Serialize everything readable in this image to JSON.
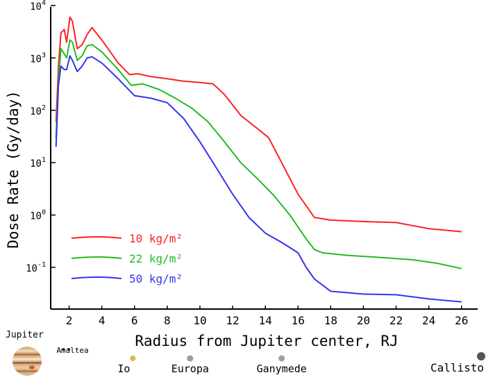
{
  "chart_data": {
    "type": "line",
    "ylabel": "Dose Rate (Gy/day)",
    "xlabel": "Radius from Jupiter center, RJ",
    "xlim": [
      1,
      26.3
    ],
    "ylim": [
      0.01,
      10000
    ],
    "yscale": "log",
    "grid": false,
    "legend_position": "lower-left",
    "x_ticks": [
      2,
      4,
      6,
      8,
      10,
      12,
      14,
      16,
      18,
      20,
      22,
      24,
      26
    ],
    "y_ticks": [
      {
        "value": 10000,
        "label": "10^4"
      },
      {
        "value": 1000,
        "label": "10^3"
      },
      {
        "value": 100,
        "label": "10^2"
      },
      {
        "value": 10,
        "label": "10^1"
      },
      {
        "value": 1,
        "label": "10^0"
      },
      {
        "value": 0.1,
        "label": "10^-1"
      }
    ],
    "series": [
      {
        "name": "10 kg/m²",
        "color": "#ff2020",
        "points": [
          [
            1.2,
            60
          ],
          [
            1.35,
            700
          ],
          [
            1.5,
            3000
          ],
          [
            1.7,
            3500
          ],
          [
            1.85,
            2000
          ],
          [
            2.05,
            6000
          ],
          [
            2.2,
            5000
          ],
          [
            2.5,
            1500
          ],
          [
            2.8,
            1800
          ],
          [
            3.1,
            2800
          ],
          [
            3.4,
            3800
          ],
          [
            4.0,
            2200
          ],
          [
            5.0,
            800
          ],
          [
            5.7,
            480
          ],
          [
            6.2,
            500
          ],
          [
            7.0,
            440
          ],
          [
            8.0,
            400
          ],
          [
            9.0,
            360
          ],
          [
            10.0,
            340
          ],
          [
            10.8,
            320
          ],
          [
            11.5,
            200
          ],
          [
            12.5,
            80
          ],
          [
            13.5,
            45
          ],
          [
            14.2,
            30
          ],
          [
            15.0,
            10
          ],
          [
            16.0,
            2.5
          ],
          [
            17.0,
            0.9
          ],
          [
            18.0,
            0.8
          ],
          [
            20.0,
            0.75
          ],
          [
            22.0,
            0.72
          ],
          [
            24.0,
            0.55
          ],
          [
            26.0,
            0.48
          ]
        ]
      },
      {
        "name": "22 kg/m²",
        "color": "#22bb22",
        "points": [
          [
            1.2,
            30
          ],
          [
            1.35,
            400
          ],
          [
            1.5,
            1500
          ],
          [
            1.7,
            1200
          ],
          [
            1.85,
            1000
          ],
          [
            2.05,
            2200
          ],
          [
            2.2,
            2000
          ],
          [
            2.5,
            900
          ],
          [
            2.8,
            1100
          ],
          [
            3.1,
            1700
          ],
          [
            3.4,
            1800
          ],
          [
            4.0,
            1300
          ],
          [
            5.0,
            600
          ],
          [
            5.8,
            300
          ],
          [
            6.5,
            320
          ],
          [
            7.5,
            250
          ],
          [
            8.5,
            170
          ],
          [
            9.5,
            110
          ],
          [
            10.5,
            60
          ],
          [
            11.5,
            25
          ],
          [
            12.5,
            10
          ],
          [
            13.5,
            5
          ],
          [
            14.5,
            2.4
          ],
          [
            15.5,
            1.0
          ],
          [
            16.5,
            0.35
          ],
          [
            17.0,
            0.22
          ],
          [
            17.5,
            0.19
          ],
          [
            19.0,
            0.17
          ],
          [
            21.0,
            0.155
          ],
          [
            23.0,
            0.14
          ],
          [
            24.5,
            0.12
          ],
          [
            26.0,
            0.095
          ]
        ]
      },
      {
        "name": "50 kg/m²",
        "color": "#3333ee",
        "points": [
          [
            1.2,
            20
          ],
          [
            1.35,
            300
          ],
          [
            1.5,
            700
          ],
          [
            1.7,
            600
          ],
          [
            1.85,
            600
          ],
          [
            2.05,
            1100
          ],
          [
            2.2,
            900
          ],
          [
            2.5,
            550
          ],
          [
            2.8,
            700
          ],
          [
            3.1,
            1000
          ],
          [
            3.4,
            1050
          ],
          [
            4.0,
            800
          ],
          [
            5.0,
            400
          ],
          [
            6.0,
            190
          ],
          [
            7.0,
            170
          ],
          [
            8.0,
            140
          ],
          [
            9.0,
            70
          ],
          [
            10.0,
            25
          ],
          [
            11.0,
            8
          ],
          [
            12.0,
            2.5
          ],
          [
            13.0,
            0.9
          ],
          [
            14.0,
            0.45
          ],
          [
            15.0,
            0.3
          ],
          [
            16.0,
            0.19
          ],
          [
            16.5,
            0.1
          ],
          [
            17.0,
            0.06
          ],
          [
            18.0,
            0.035
          ],
          [
            20.0,
            0.031
          ],
          [
            22.0,
            0.03
          ],
          [
            24.0,
            0.025
          ],
          [
            26.0,
            0.022
          ]
        ]
      }
    ]
  },
  "moons_panel": {
    "planet_label": "Jupiter",
    "moons": [
      {
        "name": "Amaltea",
        "r": 2.5,
        "color": "#222222"
      },
      {
        "name": "Io",
        "r": 5.9,
        "color": "#e0b84a"
      },
      {
        "name": "Europa",
        "r": 9.4,
        "color": "#a09b95"
      },
      {
        "name": "Ganymede",
        "r": 15.0,
        "color": "#a89c90"
      },
      {
        "name": "Callisto",
        "r": 26.4,
        "color": "#555555"
      }
    ]
  }
}
